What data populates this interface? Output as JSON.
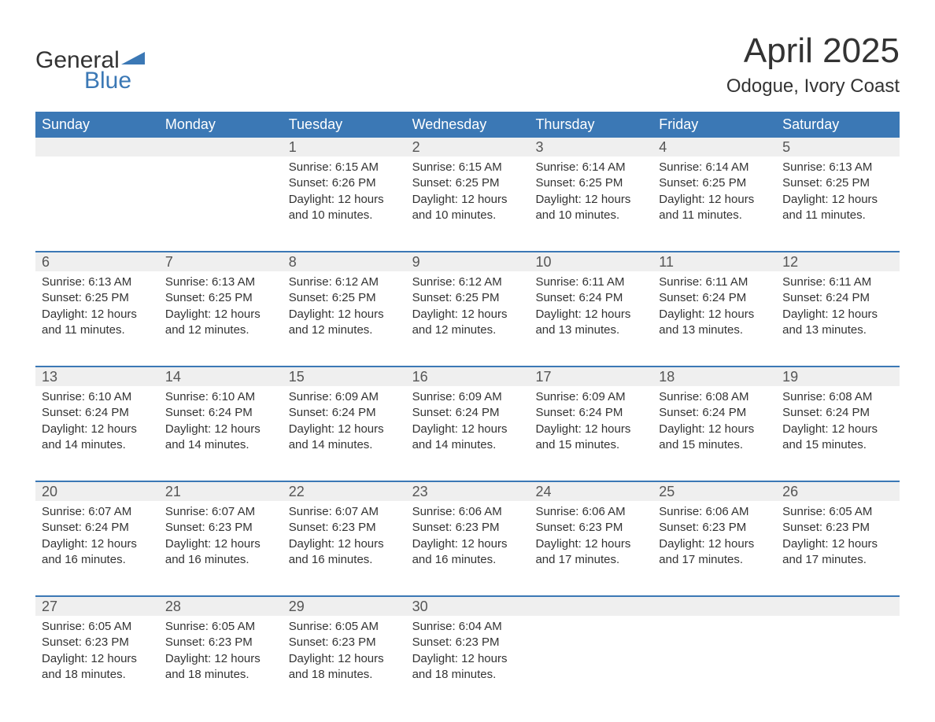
{
  "logo": {
    "text1": "General",
    "text2": "Blue"
  },
  "title": "April 2025",
  "subtitle": "Odogue, Ivory Coast",
  "colors": {
    "header_bg": "#3b78b5",
    "header_text": "#ffffff",
    "band_bg": "#efefef",
    "week_border": "#3b78b5",
    "body_text": "#333333",
    "daynum_text": "#555555",
    "logo_blue": "#3b78b5",
    "page_bg": "#ffffff"
  },
  "typography": {
    "title_fontsize": 44,
    "subtitle_fontsize": 24,
    "dayhead_fontsize": 18,
    "daynum_fontsize": 18,
    "body_fontsize": 15,
    "logo_fontsize": 30
  },
  "day_headers": [
    "Sunday",
    "Monday",
    "Tuesday",
    "Wednesday",
    "Thursday",
    "Friday",
    "Saturday"
  ],
  "weeks": [
    [
      null,
      null,
      {
        "n": "1",
        "sunrise": "Sunrise: 6:15 AM",
        "sunset": "Sunset: 6:26 PM",
        "day1": "Daylight: 12 hours",
        "day2": "and 10 minutes."
      },
      {
        "n": "2",
        "sunrise": "Sunrise: 6:15 AM",
        "sunset": "Sunset: 6:25 PM",
        "day1": "Daylight: 12 hours",
        "day2": "and 10 minutes."
      },
      {
        "n": "3",
        "sunrise": "Sunrise: 6:14 AM",
        "sunset": "Sunset: 6:25 PM",
        "day1": "Daylight: 12 hours",
        "day2": "and 10 minutes."
      },
      {
        "n": "4",
        "sunrise": "Sunrise: 6:14 AM",
        "sunset": "Sunset: 6:25 PM",
        "day1": "Daylight: 12 hours",
        "day2": "and 11 minutes."
      },
      {
        "n": "5",
        "sunrise": "Sunrise: 6:13 AM",
        "sunset": "Sunset: 6:25 PM",
        "day1": "Daylight: 12 hours",
        "day2": "and 11 minutes."
      }
    ],
    [
      {
        "n": "6",
        "sunrise": "Sunrise: 6:13 AM",
        "sunset": "Sunset: 6:25 PM",
        "day1": "Daylight: 12 hours",
        "day2": "and 11 minutes."
      },
      {
        "n": "7",
        "sunrise": "Sunrise: 6:13 AM",
        "sunset": "Sunset: 6:25 PM",
        "day1": "Daylight: 12 hours",
        "day2": "and 12 minutes."
      },
      {
        "n": "8",
        "sunrise": "Sunrise: 6:12 AM",
        "sunset": "Sunset: 6:25 PM",
        "day1": "Daylight: 12 hours",
        "day2": "and 12 minutes."
      },
      {
        "n": "9",
        "sunrise": "Sunrise: 6:12 AM",
        "sunset": "Sunset: 6:25 PM",
        "day1": "Daylight: 12 hours",
        "day2": "and 12 minutes."
      },
      {
        "n": "10",
        "sunrise": "Sunrise: 6:11 AM",
        "sunset": "Sunset: 6:24 PM",
        "day1": "Daylight: 12 hours",
        "day2": "and 13 minutes."
      },
      {
        "n": "11",
        "sunrise": "Sunrise: 6:11 AM",
        "sunset": "Sunset: 6:24 PM",
        "day1": "Daylight: 12 hours",
        "day2": "and 13 minutes."
      },
      {
        "n": "12",
        "sunrise": "Sunrise: 6:11 AM",
        "sunset": "Sunset: 6:24 PM",
        "day1": "Daylight: 12 hours",
        "day2": "and 13 minutes."
      }
    ],
    [
      {
        "n": "13",
        "sunrise": "Sunrise: 6:10 AM",
        "sunset": "Sunset: 6:24 PM",
        "day1": "Daylight: 12 hours",
        "day2": "and 14 minutes."
      },
      {
        "n": "14",
        "sunrise": "Sunrise: 6:10 AM",
        "sunset": "Sunset: 6:24 PM",
        "day1": "Daylight: 12 hours",
        "day2": "and 14 minutes."
      },
      {
        "n": "15",
        "sunrise": "Sunrise: 6:09 AM",
        "sunset": "Sunset: 6:24 PM",
        "day1": "Daylight: 12 hours",
        "day2": "and 14 minutes."
      },
      {
        "n": "16",
        "sunrise": "Sunrise: 6:09 AM",
        "sunset": "Sunset: 6:24 PM",
        "day1": "Daylight: 12 hours",
        "day2": "and 14 minutes."
      },
      {
        "n": "17",
        "sunrise": "Sunrise: 6:09 AM",
        "sunset": "Sunset: 6:24 PM",
        "day1": "Daylight: 12 hours",
        "day2": "and 15 minutes."
      },
      {
        "n": "18",
        "sunrise": "Sunrise: 6:08 AM",
        "sunset": "Sunset: 6:24 PM",
        "day1": "Daylight: 12 hours",
        "day2": "and 15 minutes."
      },
      {
        "n": "19",
        "sunrise": "Sunrise: 6:08 AM",
        "sunset": "Sunset: 6:24 PM",
        "day1": "Daylight: 12 hours",
        "day2": "and 15 minutes."
      }
    ],
    [
      {
        "n": "20",
        "sunrise": "Sunrise: 6:07 AM",
        "sunset": "Sunset: 6:24 PM",
        "day1": "Daylight: 12 hours",
        "day2": "and 16 minutes."
      },
      {
        "n": "21",
        "sunrise": "Sunrise: 6:07 AM",
        "sunset": "Sunset: 6:23 PM",
        "day1": "Daylight: 12 hours",
        "day2": "and 16 minutes."
      },
      {
        "n": "22",
        "sunrise": "Sunrise: 6:07 AM",
        "sunset": "Sunset: 6:23 PM",
        "day1": "Daylight: 12 hours",
        "day2": "and 16 minutes."
      },
      {
        "n": "23",
        "sunrise": "Sunrise: 6:06 AM",
        "sunset": "Sunset: 6:23 PM",
        "day1": "Daylight: 12 hours",
        "day2": "and 16 minutes."
      },
      {
        "n": "24",
        "sunrise": "Sunrise: 6:06 AM",
        "sunset": "Sunset: 6:23 PM",
        "day1": "Daylight: 12 hours",
        "day2": "and 17 minutes."
      },
      {
        "n": "25",
        "sunrise": "Sunrise: 6:06 AM",
        "sunset": "Sunset: 6:23 PM",
        "day1": "Daylight: 12 hours",
        "day2": "and 17 minutes."
      },
      {
        "n": "26",
        "sunrise": "Sunrise: 6:05 AM",
        "sunset": "Sunset: 6:23 PM",
        "day1": "Daylight: 12 hours",
        "day2": "and 17 minutes."
      }
    ],
    [
      {
        "n": "27",
        "sunrise": "Sunrise: 6:05 AM",
        "sunset": "Sunset: 6:23 PM",
        "day1": "Daylight: 12 hours",
        "day2": "and 18 minutes."
      },
      {
        "n": "28",
        "sunrise": "Sunrise: 6:05 AM",
        "sunset": "Sunset: 6:23 PM",
        "day1": "Daylight: 12 hours",
        "day2": "and 18 minutes."
      },
      {
        "n": "29",
        "sunrise": "Sunrise: 6:05 AM",
        "sunset": "Sunset: 6:23 PM",
        "day1": "Daylight: 12 hours",
        "day2": "and 18 minutes."
      },
      {
        "n": "30",
        "sunrise": "Sunrise: 6:04 AM",
        "sunset": "Sunset: 6:23 PM",
        "day1": "Daylight: 12 hours",
        "day2": "and 18 minutes."
      },
      null,
      null,
      null
    ]
  ]
}
